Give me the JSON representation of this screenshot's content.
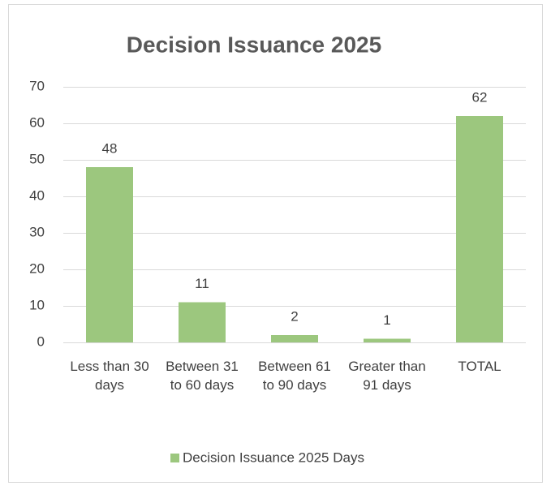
{
  "chart_data": {
    "type": "bar",
    "title": "Decision Issuance 2025",
    "categories": [
      "Less than 30 days",
      "Between 31 to 60 days",
      "Between 61 to 90 days",
      "Greater than 91 days",
      "TOTAL"
    ],
    "series": [
      {
        "name": "Decision Issuance 2025 Days",
        "color": "#9cc77e",
        "values": [
          48,
          11,
          2,
          1,
          62
        ]
      }
    ],
    "ylim": [
      0,
      70
    ],
    "yticks": [
      0,
      10,
      20,
      30,
      40,
      50,
      60,
      70
    ],
    "grid": true,
    "legend": "bottom"
  }
}
